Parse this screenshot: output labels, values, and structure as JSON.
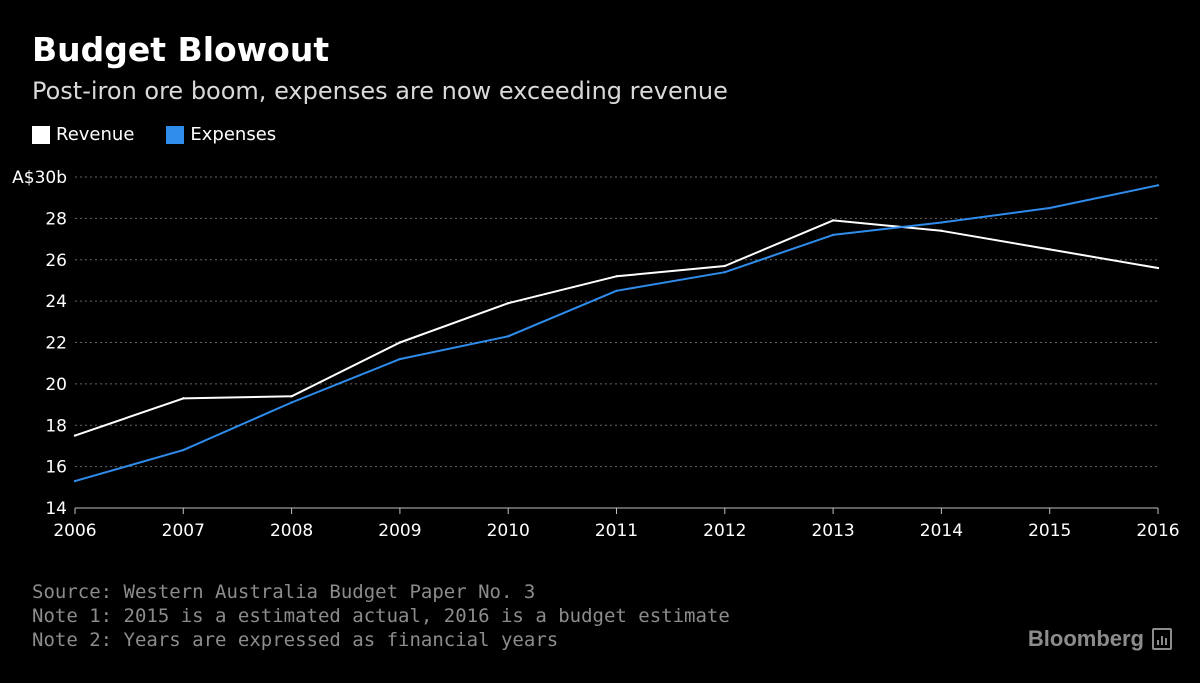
{
  "header": {
    "title": "Budget Blowout",
    "subtitle": "Post-iron ore boom, expenses are now exceeding revenue"
  },
  "colors": {
    "background": "#000000",
    "revenue": "#ffffff",
    "expenses": "#2f8ceb",
    "grid": "#666666",
    "footer_text": "#8c8c8c"
  },
  "chart_data": {
    "type": "line",
    "title": "Budget Blowout",
    "subtitle": "Post-iron ore boom, expenses are now exceeding revenue",
    "x": [
      2006,
      2007,
      2008,
      2009,
      2010,
      2011,
      2012,
      2013,
      2014,
      2015,
      2016
    ],
    "x_tick_labels": [
      "2006",
      "2007",
      "2008",
      "2009",
      "2010",
      "2011",
      "2012",
      "2013",
      "2014",
      "2015",
      "2016"
    ],
    "series": [
      {
        "name": "Revenue",
        "color": "#ffffff",
        "values": [
          17.5,
          19.3,
          19.4,
          22.0,
          23.9,
          25.2,
          25.7,
          27.9,
          27.4,
          26.5,
          25.6
        ]
      },
      {
        "name": "Expenses",
        "color": "#2f8ceb",
        "values": [
          15.3,
          16.8,
          19.1,
          21.2,
          22.3,
          24.5,
          25.4,
          27.2,
          27.8,
          28.5,
          29.6
        ]
      }
    ],
    "ylim": [
      14,
      30
    ],
    "y_ticks": [
      14,
      16,
      18,
      20,
      22,
      24,
      26,
      28,
      30
    ],
    "y_tick_labels": [
      "14",
      "16",
      "18",
      "20",
      "22",
      "24",
      "26",
      "28",
      "A$30b"
    ],
    "xlabel": "",
    "ylabel": "",
    "grid": true,
    "legend_position": "top-left"
  },
  "footer": {
    "source": "Source: Western Australia Budget Paper No. 3",
    "note1": "Note 1: 2015 is a estimated actual, 2016 is a budget estimate",
    "note2": "Note 2: Years are expressed as financial years",
    "brand": "Bloomberg"
  }
}
